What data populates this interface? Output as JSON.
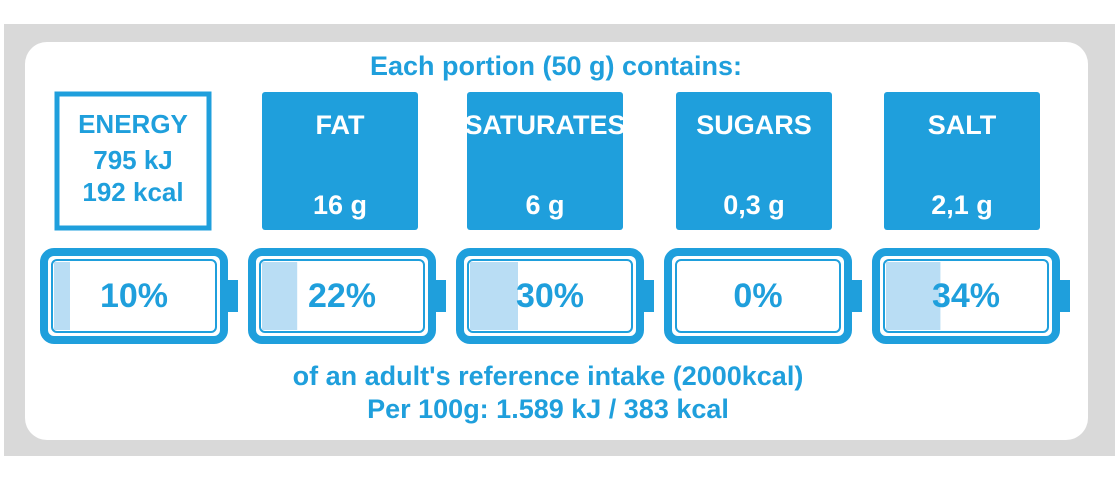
{
  "header": {
    "title": "Each portion (50 g) contains:"
  },
  "items": [
    {
      "name": "ENERGY",
      "lines": [
        "795 kJ",
        "192 kcal"
      ],
      "percent": {
        "value": 10,
        "label": "10%"
      }
    },
    {
      "name": "FAT",
      "lines": [
        "16 g"
      ],
      "percent": {
        "value": 22,
        "label": "22%"
      }
    },
    {
      "name": "SATURATES",
      "lines": [
        "6 g"
      ],
      "percent": {
        "value": 30,
        "label": "30%"
      }
    },
    {
      "name": "SUGARS",
      "lines": [
        "0,3 g"
      ],
      "percent": {
        "value": 0,
        "label": "0%"
      }
    },
    {
      "name": "SALT",
      "lines": [
        "2,1 g"
      ],
      "percent": {
        "value": 34,
        "label": "34%"
      }
    }
  ],
  "footer": {
    "line1": "of an adult's reference intake (2000kcal)",
    "line2": "Per 100g: 1.589 kJ / 383 kcal"
  }
}
